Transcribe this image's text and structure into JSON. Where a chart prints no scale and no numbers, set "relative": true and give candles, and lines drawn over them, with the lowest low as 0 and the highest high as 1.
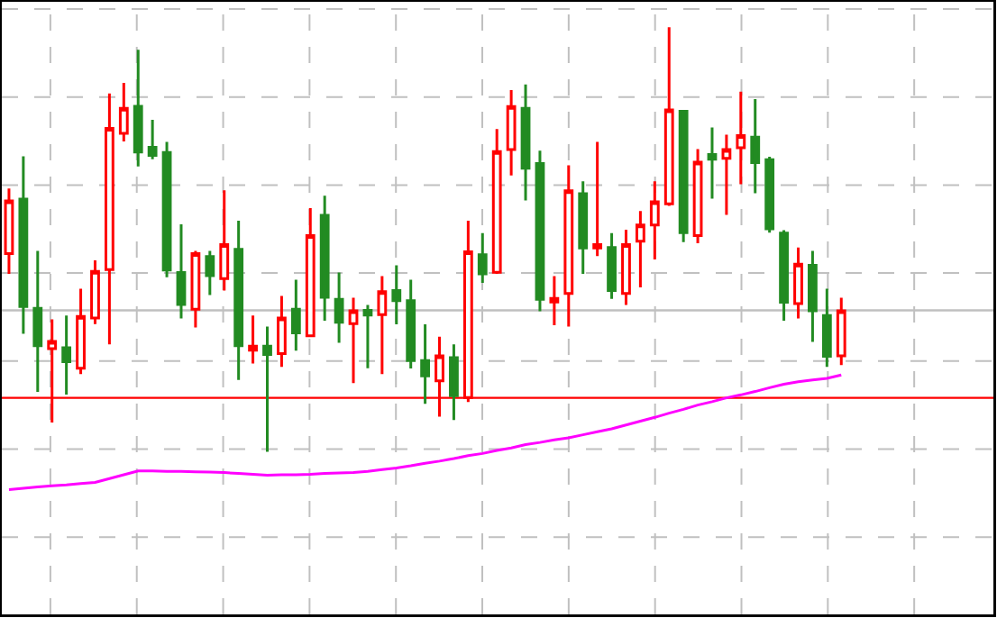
{
  "chart_data": {
    "type": "candlestick",
    "relative": true,
    "grid": true,
    "categories": [
      null,
      null,
      null,
      null,
      null,
      null,
      null,
      null,
      null,
      null,
      null,
      null,
      null,
      null,
      null,
      null,
      null,
      null,
      null,
      null,
      null,
      null,
      null,
      null,
      null,
      null,
      null,
      null,
      null,
      null,
      null,
      null,
      null,
      null,
      null,
      null,
      null,
      null,
      null,
      null,
      null,
      null,
      null,
      null,
      null,
      null,
      null,
      null,
      null,
      null,
      null,
      null,
      null,
      null,
      null,
      null,
      null,
      null,
      null
    ],
    "series": [
      {
        "type": "line",
        "color": "#ff00ff",
        "values": [
          -0.089,
          -0.086,
          -0.083,
          -0.08,
          -0.078,
          -0.075,
          -0.072,
          -0.063,
          -0.054,
          -0.045,
          -0.045,
          -0.046,
          -0.046,
          -0.047,
          -0.048,
          -0.049,
          -0.051,
          -0.053,
          -0.055,
          -0.054,
          -0.054,
          -0.053,
          -0.051,
          -0.05,
          -0.049,
          -0.046,
          -0.042,
          -0.038,
          -0.033,
          -0.027,
          -0.022,
          -0.016,
          -0.009,
          -0.004,
          0.003,
          0.009,
          0.017,
          0.022,
          0.028,
          0.033,
          0.04,
          0.047,
          0.054,
          0.063,
          0.072,
          0.081,
          0.091,
          0.1,
          0.11,
          0.118,
          0.127,
          0.134,
          0.142,
          0.151,
          0.159,
          0.165,
          0.169,
          0.173,
          0.181
        ]
      },
      {
        "colors": [
          "#ff0000",
          "#228b22",
          "#228b22",
          "#ff0000",
          "#228b22",
          "#ff0000",
          "#ff0000",
          "#ff0000",
          "#ff0000",
          "#228b22",
          "#228b22",
          "#228b22",
          "#228b22",
          "#ff0000",
          "#228b22",
          "#ff0000",
          "#228b22",
          "#ff0000",
          "#228b22",
          "#ff0000",
          "#228b22",
          "#ff0000",
          "#228b22",
          "#228b22",
          "#ff0000",
          "#228b22",
          "#ff0000",
          "#228b22",
          "#228b22",
          "#228b22",
          "#ff0000",
          "#228b22",
          "#ff0000",
          "#228b22",
          "#ff0000",
          "#ff0000",
          "#228b22",
          "#228b22",
          "#ff0000",
          "#ff0000",
          "#228b22",
          "#ff0000",
          "#228b22",
          "#ff0000",
          "#ff0000",
          "#ff0000",
          "#ff0000",
          "#228b22",
          "#ff0000",
          "#228b22",
          "#ff0000",
          "#ff0000",
          "#228b22",
          "#228b22",
          "#228b22",
          "#ff0000",
          "#228b22",
          "#228b22",
          "#ff0000"
        ],
        "ohlc": [
          [
            0.467,
            0.62,
            0.419,
            0.591
          ],
          [
            0.595,
            0.696,
            0.278,
            0.342
          ],
          [
            0.338,
            0.473,
            0.141,
            0.25
          ],
          [
            0.243,
            0.312,
            0.069,
            0.26
          ],
          [
            0.245,
            0.321,
            0.135,
            0.212
          ],
          [
            0.197,
            0.384,
            0.183,
            0.319
          ],
          [
            0.315,
            0.451,
            0.301,
            0.425
          ],
          [
            0.429,
            0.844,
            0.253,
            0.762
          ],
          [
            0.75,
            0.869,
            0.731,
            0.809
          ],
          [
            0.814,
            0.947,
            0.672,
            0.706
          ],
          [
            0.717,
            0.782,
            0.689,
            0.698
          ],
          [
            0.705,
            0.73,
            0.411,
            0.428
          ],
          [
            0.422,
            0.536,
            0.314,
            0.347
          ],
          [
            0.336,
            0.473,
            0.293,
            0.467
          ],
          [
            0.46,
            0.473,
            0.369,
            0.415
          ],
          [
            0.408,
            0.616,
            0.38,
            0.488
          ],
          [
            0.477,
            0.544,
            0.169,
            0.25
          ],
          [
            0.239,
            0.321,
            0.208,
            0.249
          ],
          [
            0.249,
            0.295,
            0,
            0.229
          ],
          [
            0.231,
            0.367,
            0.2,
            0.315
          ],
          [
            0.336,
            0.405,
            0.238,
            0.28
          ],
          [
            0.273,
            0.574,
            0.271,
            0.509
          ],
          [
            0.557,
            0.603,
            0.309,
            0.364
          ],
          [
            0.359,
            0.422,
            0.257,
            0.305
          ],
          [
            0.302,
            0.363,
            0.162,
            0.332
          ],
          [
            0.333,
            0.346,
            0.197,
            0.322
          ],
          [
            0.323,
            0.414,
            0.183,
            0.377
          ],
          [
            0.38,
            0.439,
            0.3,
            0.356
          ],
          [
            0.356,
            0.405,
            0.196,
            0.215
          ],
          [
            0.215,
            0.3,
            0.113,
            0.179
          ],
          [
            0.167,
            0.271,
            0.083,
            0.226
          ],
          [
            0.222,
            0.253,
            0.075,
            0.132
          ],
          [
            0.128,
            0.544,
            0.117,
            0.471
          ],
          [
            0.464,
            0.515,
            0.398,
            0.419
          ],
          [
            0.423,
            0.76,
            0.419,
            0.707
          ],
          [
            0.712,
            0.852,
            0.651,
            0.813
          ],
          [
            0.809,
            0.865,
            0.592,
            0.668
          ],
          [
            0.679,
            0.709,
            0.331,
            0.359
          ],
          [
            0.353,
            0.414,
            0.298,
            0.361
          ],
          [
            0.373,
            0.675,
            0.295,
            0.615
          ],
          [
            0.608,
            0.637,
            0.419,
            0.48
          ],
          [
            0.48,
            0.73,
            0.461,
            0.488
          ],
          [
            0.481,
            0.515,
            0.36,
            0.38
          ],
          [
            0.373,
            0.523,
            0.346,
            0.488
          ],
          [
            0.496,
            0.567,
            0.387,
            0.534
          ],
          [
            0.534,
            0.637,
            0.453,
            0.589
          ],
          [
            0.584,
            1,
            0.579,
            0.805
          ],
          [
            0.802,
            0.805,
            0.494,
            0.516
          ],
          [
            0.509,
            0.713,
            0.491,
            0.682
          ],
          [
            0.7,
            0.764,
            0.596,
            0.689
          ],
          [
            0.691,
            0.747,
            0.558,
            0.712
          ],
          [
            0.716,
            0.848,
            0.63,
            0.745
          ],
          [
            0.741,
            0.831,
            0.609,
            0.681
          ],
          [
            0.688,
            0.695,
            0.516,
            0.525
          ],
          [
            0.515,
            0.522,
            0.309,
            0.352
          ],
          [
            0.349,
            0.481,
            0.314,
            0.442
          ],
          [
            0.439,
            0.473,
            0.259,
            0.332
          ],
          [
            0.321,
            0.384,
            0.2,
            0.225
          ],
          [
            0.226,
            0.363,
            0.204,
            0.332
          ]
        ]
      }
    ],
    "ref_lines": [
      {
        "axis": "y",
        "value": 0.333,
        "color": "#c0c0c0"
      },
      {
        "axis": "y",
        "value": 0.127,
        "color": "#ff0000"
      }
    ]
  }
}
